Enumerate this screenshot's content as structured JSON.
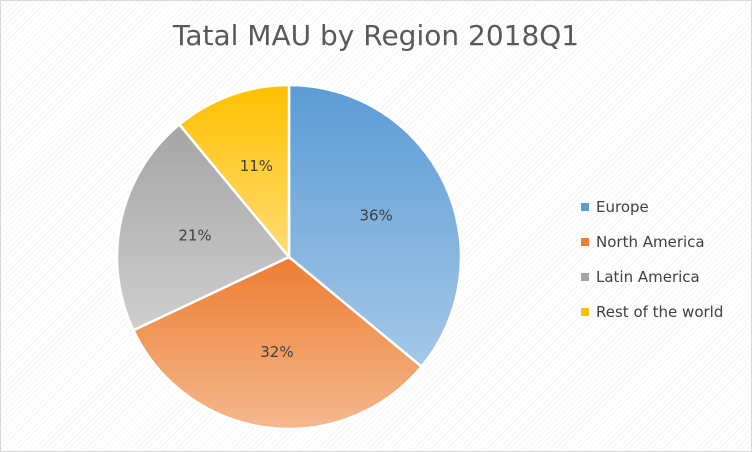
{
  "chart_data": {
    "type": "pie",
    "title": "Tatal MAU by Region 2018Q1",
    "categories": [
      "Europe",
      "North America",
      "Latin America",
      "Rest of the world"
    ],
    "values": [
      36,
      32,
      21,
      11
    ],
    "data_labels": [
      "36%",
      "32%",
      "21%",
      "11%"
    ],
    "colors": [
      "#5b9bd5",
      "#ed7d31",
      "#a5a5a5",
      "#ffc000"
    ],
    "legend_position": "right"
  }
}
